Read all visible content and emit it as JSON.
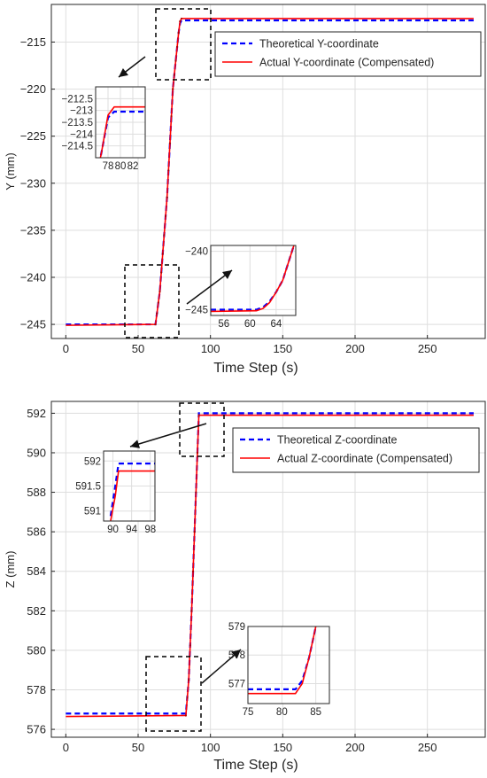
{
  "chart_data": [
    {
      "type": "line",
      "xlabel": "Time Step (s)",
      "ylabel": "Y (mm)",
      "xlim": [
        -10,
        290
      ],
      "ylim": [
        -246.5,
        -211
      ],
      "xticks": [
        0,
        50,
        100,
        150,
        200,
        250
      ],
      "yticks": [
        -245,
        -240,
        -235,
        -230,
        -225,
        -220,
        -215
      ],
      "grid": true,
      "legend_position": "top-right",
      "series": [
        {
          "name": "Theoretical Y-coordinate",
          "color": "#0000ff",
          "style": "dashed",
          "x": [
            0,
            62,
            65,
            70,
            74,
            78,
            79,
            80,
            282
          ],
          "y": [
            -245.0,
            -245.0,
            -241.5,
            -231.5,
            -220.0,
            -214.0,
            -213.0,
            -212.7,
            -212.7
          ]
        },
        {
          "name": "Actual Y-coordinate (Compensated)",
          "color": "#ff0000",
          "style": "solid",
          "x": [
            0,
            62,
            65,
            70,
            74,
            78,
            79,
            80,
            282
          ],
          "y": [
            -245.1,
            -245.0,
            -241.5,
            -231.5,
            -220.0,
            -214.0,
            -212.8,
            -212.5,
            -212.5
          ]
        }
      ],
      "insets": [
        {
          "xlim": [
            76,
            84
          ],
          "ylim": [
            -215,
            -212
          ],
          "xticks": [
            78,
            80,
            82
          ],
          "yticks": [
            -212.5,
            -213,
            -213.5,
            -214,
            -214.5
          ],
          "series": [
            {
              "name": "Theoretical Y-coordinate",
              "x": [
                76,
                77,
                78,
                79,
                84
              ],
              "y": [
                -216,
                -214.7,
                -213.3,
                -213.05,
                -213.05
              ]
            },
            {
              "name": "Actual Y-coordinate (Compensated)",
              "x": [
                76,
                77,
                78,
                79,
                84
              ],
              "y": [
                -216,
                -214.7,
                -213.2,
                -212.85,
                -212.85
              ]
            }
          ]
        },
        {
          "xlim": [
            54,
            67
          ],
          "ylim": [
            -245.5,
            -239.5
          ],
          "xticks": [
            56,
            60,
            64
          ],
          "yticks": [
            -240,
            -245
          ],
          "series": [
            {
              "name": "Theoretical Y-coordinate",
              "x": [
                54,
                61,
                62,
                63,
                64,
                65,
                67
              ],
              "y": [
                -245.0,
                -245.0,
                -244.8,
                -244.3,
                -243.5,
                -242.5,
                -239.0
              ]
            },
            {
              "name": "Actual Y-coordinate (Compensated)",
              "x": [
                54,
                61,
                62,
                63,
                64,
                65,
                67
              ],
              "y": [
                -245.15,
                -245.1,
                -244.9,
                -244.4,
                -243.5,
                -242.5,
                -239.0
              ]
            }
          ]
        }
      ]
    },
    {
      "type": "line",
      "xlabel": "Time Step (s)",
      "ylabel": "Z (mm)",
      "xlim": [
        -10,
        290
      ],
      "ylim": [
        575.6,
        592.6
      ],
      "xticks": [
        0,
        50,
        100,
        150,
        200,
        250
      ],
      "yticks": [
        576,
        578,
        580,
        582,
        584,
        586,
        588,
        590,
        592
      ],
      "grid": true,
      "legend_position": "top-right",
      "series": [
        {
          "name": "Theoretical Z-coordinate",
          "color": "#0000ff",
          "style": "dashed",
          "x": [
            0,
            83,
            85,
            87,
            89,
            91,
            92,
            282
          ],
          "y": [
            576.8,
            576.8,
            578.5,
            582.0,
            586.0,
            590.0,
            592.0,
            592.0
          ]
        },
        {
          "name": "Actual Z-coordinate (Compensated)",
          "color": "#ff0000",
          "style": "solid",
          "x": [
            0,
            83,
            85,
            87,
            89,
            91,
            92,
            282
          ],
          "y": [
            576.65,
            576.7,
            578.5,
            582.0,
            586.0,
            590.0,
            591.9,
            591.9
          ]
        }
      ],
      "insets": [
        {
          "xlim": [
            88,
            99
          ],
          "ylim": [
            590.8,
            592.2
          ],
          "xticks": [
            90,
            94,
            98
          ],
          "yticks": [
            592,
            591.5,
            591
          ],
          "series": [
            {
              "name": "Theoretical Z-coordinate",
              "x": [
                89.5,
                90.5,
                91.2,
                99
              ],
              "y": [
                590.9,
                591.5,
                591.95,
                591.95
              ]
            },
            {
              "name": "Actual Z-coordinate (Compensated)",
              "x": [
                89.5,
                90.5,
                91.2,
                99
              ],
              "y": [
                590.8,
                591.3,
                591.8,
                591.8
              ]
            }
          ]
        },
        {
          "xlim": [
            75,
            87
          ],
          "ylim": [
            576.3,
            579.0
          ],
          "xticks": [
            75,
            80,
            85
          ],
          "yticks": [
            577,
            578,
            579
          ],
          "series": [
            {
              "name": "Theoretical Z-coordinate",
              "x": [
                75,
                82,
                83,
                84,
                85
              ],
              "y": [
                576.8,
                576.8,
                577.1,
                577.9,
                579.0
              ]
            },
            {
              "name": "Actual Z-coordinate (Compensated)",
              "x": [
                75,
                82,
                83,
                84,
                85
              ],
              "y": [
                576.65,
                576.65,
                577.0,
                577.9,
                579.0
              ]
            }
          ]
        }
      ]
    }
  ]
}
